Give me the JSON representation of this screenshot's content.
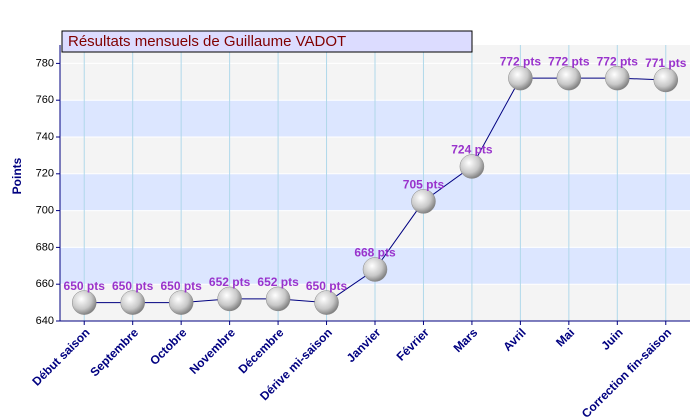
{
  "chart_data": {
    "type": "line",
    "title": "Résultats mensuels de  Guillaume VADOT",
    "y_label": "Points",
    "categories": [
      "Début saison",
      "Septembre",
      "Octobre",
      "Novembre",
      "Décembre",
      "Dérive mi-saison",
      "Janvier",
      "Février",
      "Mars",
      "Avril",
      "Mai",
      "Juin",
      "Correction fin-saison"
    ],
    "values": [
      650,
      650,
      650,
      652,
      652,
      650,
      668,
      705,
      724,
      772,
      772,
      772,
      771
    ],
    "value_labels": [
      "650 pts",
      "650 pts",
      "650 pts",
      "652 pts",
      "652 pts",
      "650 pts",
      "668 pts",
      "705 pts",
      "724 pts",
      "772 pts",
      "772 pts",
      "772 pts",
      "771 pts"
    ],
    "color": "#000080",
    "label_color": "#9933cc",
    "ylim": [
      640,
      790
    ],
    "yticks": [
      640,
      660,
      680,
      700,
      720,
      740,
      760,
      780
    ],
    "grid": true
  }
}
